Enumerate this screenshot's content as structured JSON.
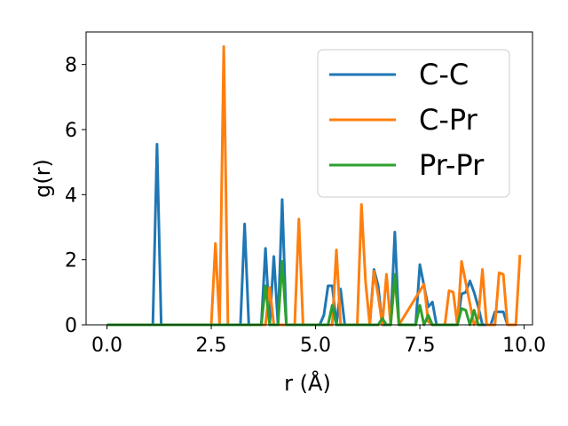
{
  "chart_data": {
    "type": "line",
    "title": "",
    "xlabel": "r (Å)",
    "ylabel": "g(r)",
    "xlim": [
      -0.5,
      10.2
    ],
    "ylim": [
      0,
      9
    ],
    "xticks": [
      0.0,
      2.5,
      5.0,
      7.5,
      10.0
    ],
    "xtick_labels": [
      "0.0",
      "2.5",
      "5.0",
      "7.5",
      "10.0"
    ],
    "yticks": [
      0,
      2,
      4,
      6,
      8
    ],
    "ytick_labels": [
      "0",
      "2",
      "4",
      "6",
      "8"
    ],
    "grid": false,
    "legend_position": "top-right",
    "series": [
      {
        "name": "C-C",
        "color": "#1f77b4",
        "x": [
          0.0,
          1.1,
          1.2,
          1.3,
          3.2,
          3.3,
          3.4,
          3.7,
          3.8,
          3.9,
          4.0,
          4.1,
          4.2,
          4.3,
          5.1,
          5.2,
          5.3,
          5.4,
          5.5,
          5.6,
          5.7,
          6.3,
          6.4,
          6.5,
          6.6,
          6.8,
          6.9,
          7.0,
          7.4,
          7.5,
          7.6,
          7.7,
          7.8,
          7.9,
          8.4,
          8.5,
          8.6,
          8.7,
          8.8,
          8.9,
          9.0,
          9.2,
          9.3,
          9.4,
          9.5,
          9.6
        ],
        "y": [
          0,
          0,
          5.55,
          0,
          0,
          3.1,
          0,
          0,
          2.35,
          0,
          2.1,
          0,
          3.85,
          0,
          0,
          0.3,
          1.2,
          1.2,
          0,
          1.1,
          0,
          0,
          1.7,
          1.2,
          0,
          0,
          2.85,
          0,
          0,
          1.85,
          1.2,
          0.55,
          0.7,
          0,
          0,
          0.95,
          1.0,
          1.35,
          1.0,
          0.55,
          0,
          0,
          0.4,
          0.4,
          0.4,
          0
        ]
      },
      {
        "name": "C-Pr",
        "color": "#ff7f0e",
        "x": [
          0.0,
          2.5,
          2.6,
          2.7,
          2.8,
          2.9,
          3.8,
          3.9,
          4.0,
          4.5,
          4.6,
          4.7,
          5.4,
          5.5,
          5.6,
          6.0,
          6.1,
          6.2,
          6.3,
          6.4,
          6.5,
          6.6,
          6.7,
          6.8,
          6.9,
          7.0,
          7.6,
          7.7,
          7.8,
          8.1,
          8.2,
          8.3,
          8.4,
          8.5,
          8.8,
          8.9,
          9.0,
          9.1,
          9.3,
          9.4,
          9.5,
          9.6,
          9.8,
          9.9
        ],
        "y": [
          0,
          0,
          2.5,
          0,
          8.55,
          0,
          0,
          1.15,
          0,
          0,
          3.25,
          0,
          0,
          2.3,
          0,
          0,
          3.7,
          1.3,
          0,
          1.65,
          0.9,
          0,
          1.55,
          0,
          1.45,
          0,
          1.25,
          0.1,
          0,
          0,
          1.05,
          1.0,
          0,
          1.95,
          0,
          0.2,
          1.7,
          0,
          0,
          1.6,
          1.55,
          0,
          0,
          2.15
        ]
      },
      {
        "name": "Pr-Pr",
        "color": "#2ca02c",
        "x": [
          0.0,
          3.7,
          3.8,
          3.9,
          4.1,
          4.2,
          4.3,
          5.3,
          5.4,
          5.5,
          5.6,
          6.5,
          6.6,
          6.7,
          6.8,
          6.9,
          7.0,
          7.4,
          7.5,
          7.6,
          7.7,
          7.8,
          8.4,
          8.5,
          8.6,
          8.7,
          8.8,
          8.9,
          9.0
        ],
        "y": [
          0,
          0,
          1.2,
          0,
          0,
          1.95,
          0,
          0,
          0.6,
          0,
          0,
          0,
          0.2,
          0,
          0,
          1.55,
          0,
          0,
          0.6,
          0,
          0.3,
          0,
          0,
          0.5,
          0.45,
          0,
          0.45,
          0,
          0
        ]
      }
    ]
  }
}
